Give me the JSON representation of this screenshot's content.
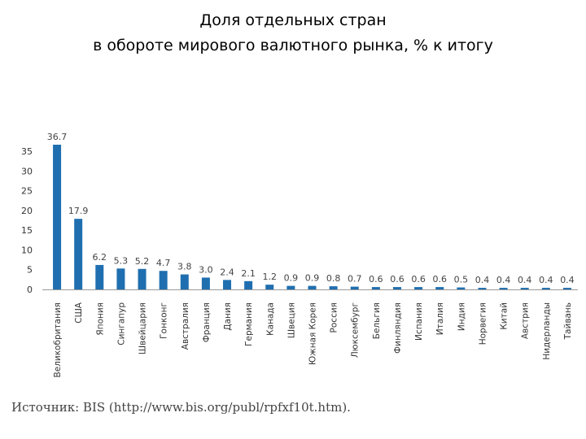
{
  "title": {
    "line1": "Доля отдельных стран",
    "line2": "в обороте мирового валютного рынка, %  к итогу"
  },
  "source": "Источник: BIS (http://www.bis.org/publ/rpfxf10t.htm).",
  "chart_data": {
    "type": "bar",
    "categories": [
      "Великобритания",
      "США",
      "Япония",
      "Сингапур",
      "Швейцария",
      "Гонконг",
      "Австралия",
      "Франция",
      "Дания",
      "Германия",
      "Канада",
      "Швеция",
      "Южная Корея",
      "Россия",
      "Люксембург",
      "Бельгия",
      "Финляндия",
      "Испания",
      "Италия",
      "Индия",
      "Норвегия",
      "Китай",
      "Австрия",
      "Нидерланды",
      "Тайвань"
    ],
    "values": [
      36.7,
      17.9,
      6.2,
      5.3,
      5.2,
      4.7,
      3.8,
      3.0,
      2.4,
      2.1,
      1.2,
      0.9,
      0.9,
      0.8,
      0.7,
      0.6,
      0.6,
      0.6,
      0.6,
      0.5,
      0.4,
      0.4,
      0.4,
      0.4,
      0.4
    ],
    "value_labels": [
      "36.7",
      "17.9",
      "6.2",
      "5.3",
      "5.2",
      "4.7",
      "3.8",
      "3.0",
      "2.4",
      "2.1",
      "1.2",
      "0.9",
      "0.9",
      "0.8",
      "0.7",
      "0.6",
      "0.6",
      "0.6",
      "0.6",
      "0.5",
      "0.4",
      "0.4",
      "0.4",
      "0.4",
      "0.4"
    ],
    "yticks": [
      0,
      5,
      10,
      15,
      20,
      25,
      30,
      35
    ],
    "ylim": [
      0,
      36.7
    ],
    "grid": false,
    "legend": "none",
    "colors": {
      "bar": "#1f6fb0",
      "value_label": "#444444",
      "axis": "#999999",
      "tick_label": "#333333"
    }
  }
}
